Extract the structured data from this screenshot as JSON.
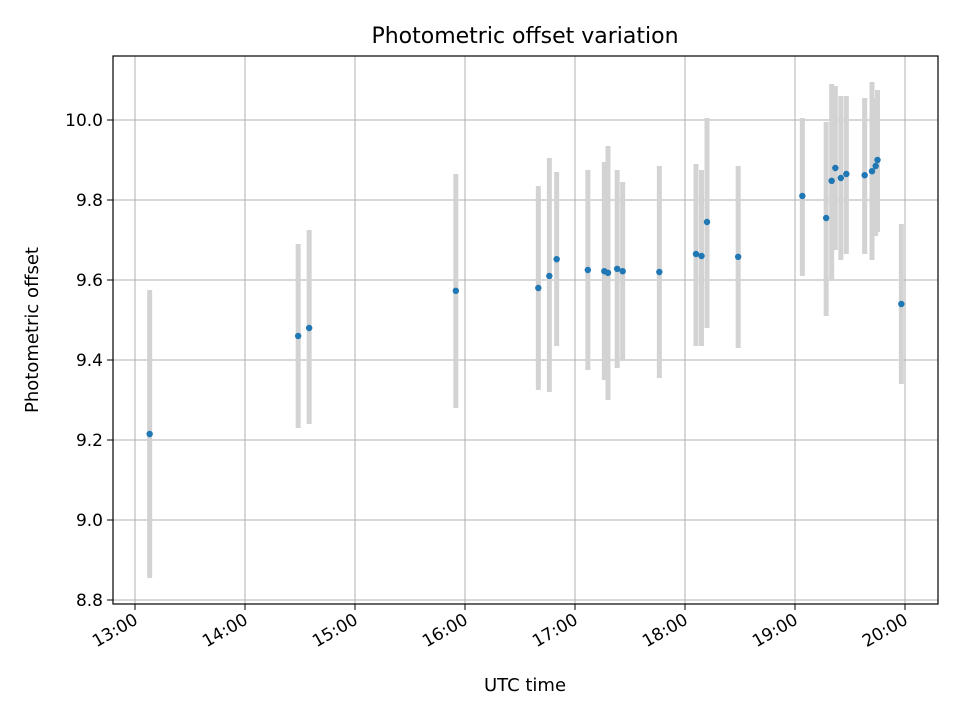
{
  "chart_data": {
    "type": "scatter",
    "title": "Photometric offset variation",
    "xlabel": "UTC time",
    "ylabel": "Photometric offset",
    "x_ticks": [
      "13:00",
      "14:00",
      "15:00",
      "16:00",
      "17:00",
      "18:00",
      "19:00",
      "20:00"
    ],
    "y_ticks": [
      "8.8",
      "9.0",
      "9.2",
      "9.4",
      "9.6",
      "9.8",
      "10.0"
    ],
    "xlim": [
      "12:48",
      "20:18"
    ],
    "ylim": [
      8.79,
      10.16
    ],
    "grid": true,
    "point_color": "#1f77b4",
    "errorbar_color": "#d3d3d3",
    "points": [
      {
        "x": "13:08",
        "y": 9.215,
        "lo": 8.855,
        "hi": 9.575
      },
      {
        "x": "14:29",
        "y": 9.46,
        "lo": 9.23,
        "hi": 9.69
      },
      {
        "x": "14:35",
        "y": 9.48,
        "lo": 9.24,
        "hi": 9.725
      },
      {
        "x": "15:55",
        "y": 9.573,
        "lo": 9.28,
        "hi": 9.865
      },
      {
        "x": "16:40",
        "y": 9.58,
        "lo": 9.325,
        "hi": 9.835
      },
      {
        "x": "16:46",
        "y": 9.61,
        "lo": 9.32,
        "hi": 9.905
      },
      {
        "x": "16:50",
        "y": 9.652,
        "lo": 9.435,
        "hi": 9.87
      },
      {
        "x": "17:07",
        "y": 9.625,
        "lo": 9.375,
        "hi": 9.875
      },
      {
        "x": "17:16",
        "y": 9.622,
        "lo": 9.35,
        "hi": 9.895
      },
      {
        "x": "17:18",
        "y": 9.618,
        "lo": 9.3,
        "hi": 9.935
      },
      {
        "x": "17:23",
        "y": 9.628,
        "lo": 9.38,
        "hi": 9.875
      },
      {
        "x": "17:26",
        "y": 9.622,
        "lo": 9.4,
        "hi": 9.845
      },
      {
        "x": "17:46",
        "y": 9.62,
        "lo": 9.355,
        "hi": 9.885
      },
      {
        "x": "18:06",
        "y": 9.665,
        "lo": 9.435,
        "hi": 9.89
      },
      {
        "x": "18:09",
        "y": 9.66,
        "lo": 9.435,
        "hi": 9.875
      },
      {
        "x": "18:12",
        "y": 9.745,
        "lo": 9.48,
        "hi": 10.005
      },
      {
        "x": "18:29",
        "y": 9.658,
        "lo": 9.43,
        "hi": 9.885
      },
      {
        "x": "19:04",
        "y": 9.81,
        "lo": 9.61,
        "hi": 10.005
      },
      {
        "x": "19:17",
        "y": 9.755,
        "lo": 9.51,
        "hi": 9.995
      },
      {
        "x": "19:20",
        "y": 9.848,
        "lo": 9.6,
        "hi": 10.09
      },
      {
        "x": "19:22",
        "y": 9.88,
        "lo": 9.675,
        "hi": 10.085
      },
      {
        "x": "19:25",
        "y": 9.855,
        "lo": 9.65,
        "hi": 10.06
      },
      {
        "x": "19:28",
        "y": 9.865,
        "lo": 9.665,
        "hi": 10.06
      },
      {
        "x": "19:38",
        "y": 9.862,
        "lo": 9.665,
        "hi": 10.055
      },
      {
        "x": "19:42",
        "y": 9.872,
        "lo": 9.65,
        "hi": 10.095
      },
      {
        "x": "19:44",
        "y": 9.885,
        "lo": 9.71,
        "hi": 10.055
      },
      {
        "x": "19:45",
        "y": 9.9,
        "lo": 9.72,
        "hi": 10.075
      },
      {
        "x": "19:58",
        "y": 9.54,
        "lo": 9.34,
        "hi": 9.74
      }
    ]
  }
}
